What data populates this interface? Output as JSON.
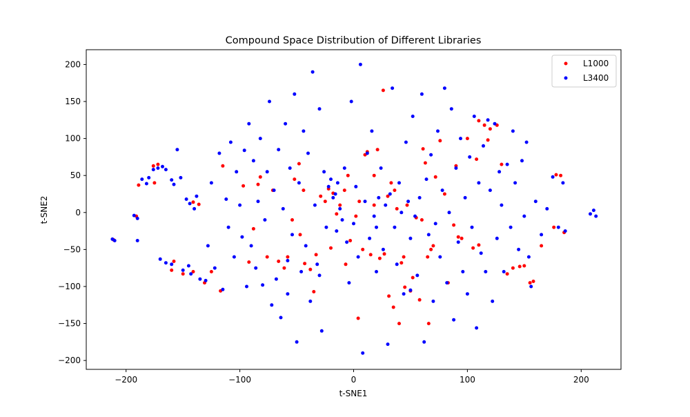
{
  "chart_data": {
    "type": "scatter",
    "title": "Compound Space Distribution of Different Libraries",
    "xlabel": "t-SNE1",
    "ylabel": "t-SNE2",
    "xlim": [
      -235,
      235
    ],
    "ylim": [
      -212,
      220
    ],
    "xticks": [
      -200,
      -100,
      0,
      100,
      200
    ],
    "yticks": [
      -200,
      -150,
      -100,
      -50,
      0,
      50,
      100,
      150,
      200
    ],
    "grid": false,
    "legend_position": "top-right",
    "series": [
      {
        "name": "L1000",
        "color": "#ff0000",
        "points": [
          [
            -211,
            -37
          ],
          [
            -191,
            -5
          ],
          [
            -172,
            65
          ],
          [
            -175,
            40
          ],
          [
            -158,
            -66
          ],
          [
            -160,
            -78
          ],
          [
            -150,
            -83
          ],
          [
            -141,
            14
          ],
          [
            -136,
            11
          ],
          [
            -141,
            -80
          ],
          [
            -131,
            -95
          ],
          [
            -115,
            63
          ],
          [
            -117,
            -106
          ],
          [
            -97,
            36
          ],
          [
            -92,
            -67
          ],
          [
            -82,
            48
          ],
          [
            -84,
            38
          ],
          [
            -76,
            -60
          ],
          [
            -71,
            30
          ],
          [
            -66,
            -66
          ],
          [
            -61,
            -75
          ],
          [
            -58,
            -60
          ],
          [
            -52,
            45
          ],
          [
            -47,
            -30
          ],
          [
            -44,
            30
          ],
          [
            -43,
            -69
          ],
          [
            -38,
            -77
          ],
          [
            -35,
            -107
          ],
          [
            -33,
            -57
          ],
          [
            -29,
            22
          ],
          [
            -25,
            15
          ],
          [
            -22,
            32
          ],
          [
            -18,
            26
          ],
          [
            -15,
            -2
          ],
          [
            -12,
            10
          ],
          [
            -8,
            30
          ],
          [
            -5,
            50
          ],
          [
            -3,
            -38
          ],
          [
            2,
            -5
          ],
          [
            5,
            15
          ],
          [
            8,
            -50
          ],
          [
            10,
            78
          ],
          [
            12,
            82
          ],
          [
            15,
            -57
          ],
          [
            18,
            10
          ],
          [
            21,
            85
          ],
          [
            23,
            -62
          ],
          [
            27,
            -56
          ],
          [
            30,
            22
          ],
          [
            31,
            -113
          ],
          [
            33,
            40
          ],
          [
            35,
            -128
          ],
          [
            38,
            5
          ],
          [
            42,
            -68
          ],
          [
            44,
            -60
          ],
          [
            45,
            -101
          ],
          [
            47,
            10
          ],
          [
            50,
            -106
          ],
          [
            52,
            -88
          ],
          [
            55,
            -7
          ],
          [
            58,
            -118
          ],
          [
            60,
            -10
          ],
          [
            61,
            86
          ],
          [
            63,
            67
          ],
          [
            65,
            -60
          ],
          [
            68,
            -50
          ],
          [
            70,
            -45
          ],
          [
            72,
            48
          ],
          [
            76,
            97
          ],
          [
            80,
            25
          ],
          [
            83,
            -95
          ],
          [
            88,
            -17
          ],
          [
            92,
            -33
          ],
          [
            95,
            -35
          ],
          [
            100,
            100
          ],
          [
            105,
            -48
          ],
          [
            108,
            72
          ],
          [
            110,
            -44
          ],
          [
            110,
            124
          ],
          [
            115,
            118
          ],
          [
            120,
            113
          ],
          [
            126,
            118
          ],
          [
            135,
            -83
          ],
          [
            140,
            -75
          ],
          [
            146,
            -73
          ],
          [
            150,
            -72
          ],
          [
            155,
            -95
          ],
          [
            158,
            -93
          ],
          [
            178,
            51
          ],
          [
            182,
            50
          ],
          [
            176,
            -20
          ],
          [
            185,
            -27
          ],
          [
            -189,
            37
          ],
          [
            -176,
            63
          ],
          [
            -125,
            -80
          ],
          [
            -88,
            -22
          ],
          [
            -54,
            -10
          ],
          [
            -48,
            66
          ],
          [
            -20,
            -48
          ],
          [
            -7,
            -70
          ],
          [
            4,
            -143
          ],
          [
            18,
            50
          ],
          [
            26,
            165
          ],
          [
            36,
            30
          ],
          [
            40,
            -150
          ],
          [
            66,
            -150
          ],
          [
            90,
            63
          ],
          [
            118,
            98
          ],
          [
            130,
            65
          ],
          [
            165,
            -45
          ]
        ]
      },
      {
        "name": "L3400",
        "color": "#0000ff",
        "points": [
          [
            -212,
            -36
          ],
          [
            -210,
            -38
          ],
          [
            -193,
            -4
          ],
          [
            -190,
            -8
          ],
          [
            -190,
            -38
          ],
          [
            -186,
            45
          ],
          [
            -182,
            39
          ],
          [
            -180,
            47
          ],
          [
            -176,
            58
          ],
          [
            -172,
            60
          ],
          [
            -168,
            62
          ],
          [
            -165,
            58
          ],
          [
            -170,
            -63
          ],
          [
            -165,
            -68
          ],
          [
            -160,
            -70
          ],
          [
            -160,
            44
          ],
          [
            -158,
            38
          ],
          [
            -155,
            85
          ],
          [
            -152,
            47
          ],
          [
            -150,
            -78
          ],
          [
            -145,
            -72
          ],
          [
            -143,
            -83
          ],
          [
            -147,
            18
          ],
          [
            -144,
            12
          ],
          [
            -140,
            5
          ],
          [
            -138,
            22
          ],
          [
            -135,
            -90
          ],
          [
            -130,
            -92
          ],
          [
            -128,
            -45
          ],
          [
            -125,
            40
          ],
          [
            -122,
            -75
          ],
          [
            -118,
            80
          ],
          [
            -115,
            -104
          ],
          [
            -112,
            18
          ],
          [
            -110,
            -20
          ],
          [
            -108,
            95
          ],
          [
            -105,
            -60
          ],
          [
            -103,
            55
          ],
          [
            -100,
            10
          ],
          [
            -98,
            -33
          ],
          [
            -96,
            84
          ],
          [
            -94,
            -100
          ],
          [
            -92,
            120
          ],
          [
            -90,
            -45
          ],
          [
            -88,
            70
          ],
          [
            -86,
            -75
          ],
          [
            -84,
            15
          ],
          [
            -82,
            100
          ],
          [
            -80,
            -98
          ],
          [
            -78,
            -10
          ],
          [
            -76,
            55
          ],
          [
            -74,
            150
          ],
          [
            -72,
            -125
          ],
          [
            -70,
            30
          ],
          [
            -68,
            -90
          ],
          [
            -66,
            85
          ],
          [
            -64,
            -142
          ],
          [
            -62,
            5
          ],
          [
            -60,
            120
          ],
          [
            -58,
            -110
          ],
          [
            -56,
            60
          ],
          [
            -54,
            -30
          ],
          [
            -52,
            160
          ],
          [
            -50,
            -175
          ],
          [
            -48,
            40
          ],
          [
            -46,
            -80
          ],
          [
            -44,
            110
          ],
          [
            -42,
            -45
          ],
          [
            -40,
            80
          ],
          [
            -38,
            -120
          ],
          [
            -36,
            190
          ],
          [
            -34,
            10
          ],
          [
            -32,
            -70
          ],
          [
            -30,
            140
          ],
          [
            -28,
            -160
          ],
          [
            -26,
            55
          ],
          [
            -24,
            -20
          ],
          [
            -22,
            35
          ],
          [
            -20,
            45
          ],
          [
            -18,
            20
          ],
          [
            -16,
            25
          ],
          [
            -14,
            40
          ],
          [
            -12,
            5
          ],
          [
            -10,
            -10
          ],
          [
            -8,
            60
          ],
          [
            -6,
            -40
          ],
          [
            -4,
            -95
          ],
          [
            -2,
            150
          ],
          [
            0,
            -15
          ],
          [
            2,
            35
          ],
          [
            4,
            -60
          ],
          [
            6,
            200
          ],
          [
            8,
            -190
          ],
          [
            10,
            15
          ],
          [
            12,
            80
          ],
          [
            14,
            -35
          ],
          [
            16,
            110
          ],
          [
            18,
            -5
          ],
          [
            20,
            -80
          ],
          [
            22,
            20
          ],
          [
            24,
            60
          ],
          [
            26,
            -50
          ],
          [
            28,
            10
          ],
          [
            30,
            -178
          ],
          [
            32,
            25
          ],
          [
            34,
            168
          ],
          [
            36,
            -20
          ],
          [
            38,
            -70
          ],
          [
            40,
            40
          ],
          [
            42,
            0
          ],
          [
            44,
            -110
          ],
          [
            46,
            95
          ],
          [
            48,
            15
          ],
          [
            50,
            -35
          ],
          [
            52,
            130
          ],
          [
            54,
            -5
          ],
          [
            56,
            -85
          ],
          [
            58,
            20
          ],
          [
            60,
            160
          ],
          [
            62,
            -175
          ],
          [
            64,
            45
          ],
          [
            66,
            -30
          ],
          [
            68,
            78
          ],
          [
            70,
            -120
          ],
          [
            72,
            -15
          ],
          [
            74,
            110
          ],
          [
            76,
            -60
          ],
          [
            78,
            30
          ],
          [
            80,
            168
          ],
          [
            82,
            -95
          ],
          [
            84,
            0
          ],
          [
            86,
            140
          ],
          [
            88,
            -145
          ],
          [
            90,
            60
          ],
          [
            92,
            -40
          ],
          [
            94,
            100
          ],
          [
            96,
            -80
          ],
          [
            98,
            20
          ],
          [
            100,
            -110
          ],
          [
            102,
            75
          ],
          [
            104,
            -20
          ],
          [
            106,
            130
          ],
          [
            108,
            -156
          ],
          [
            110,
            40
          ],
          [
            112,
            -55
          ],
          [
            114,
            90
          ],
          [
            116,
            -80
          ],
          [
            118,
            125
          ],
          [
            120,
            30
          ],
          [
            122,
            -120
          ],
          [
            124,
            120
          ],
          [
            126,
            -35
          ],
          [
            128,
            55
          ],
          [
            130,
            10
          ],
          [
            132,
            -80
          ],
          [
            135,
            65
          ],
          [
            138,
            -20
          ],
          [
            140,
            110
          ],
          [
            142,
            40
          ],
          [
            145,
            -50
          ],
          [
            148,
            70
          ],
          [
            150,
            -5
          ],
          [
            152,
            95
          ],
          [
            154,
            -60
          ],
          [
            156,
            -100
          ],
          [
            160,
            15
          ],
          [
            165,
            -30
          ],
          [
            170,
            5
          ],
          [
            175,
            48
          ],
          [
            180,
            -20
          ],
          [
            184,
            40
          ],
          [
            186,
            -25
          ],
          [
            208,
            -2
          ],
          [
            211,
            3
          ],
          [
            213,
            -5
          ],
          [
            -58,
            -65
          ],
          [
            -30,
            -85
          ],
          [
            50,
            -105
          ],
          [
            20,
            -20
          ],
          [
            -15,
            -25
          ]
        ]
      }
    ]
  }
}
